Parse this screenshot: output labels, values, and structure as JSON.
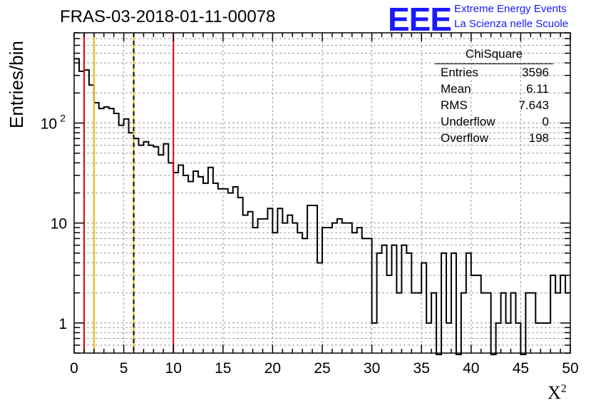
{
  "header": {
    "run_title": "FRAS-03-2018-01-11-00078",
    "logo_text": "EEE",
    "logo_line1": "Extreme Energy Events",
    "logo_line2": "La Scienza nelle Scuole",
    "logo_color": "#1a1aff"
  },
  "stats": {
    "title": "ChiSquare",
    "rows": [
      {
        "key": "Entries",
        "value": "3596"
      },
      {
        "key": "Mean",
        "value": "6.11"
      },
      {
        "key": "RMS",
        "value": "7.643"
      },
      {
        "key": "Underflow",
        "value": "0"
      },
      {
        "key": "Overflow",
        "value": "198"
      }
    ]
  },
  "chart_data": {
    "type": "histogram",
    "title": "FRAS-03-2018-01-11-00078",
    "xlabel": "X",
    "xlabel_sup": "2",
    "ylabel": "Entries/bin",
    "xlim": [
      0,
      50
    ],
    "ylim": [
      0.5,
      800
    ],
    "yscale": "log",
    "grid": true,
    "bin_width": 0.5,
    "x_ticks": [
      "0",
      "5",
      "10",
      "15",
      "20",
      "25",
      "30",
      "35",
      "40",
      "45",
      "50"
    ],
    "y_ticks": [
      {
        "value": 1,
        "label": "1"
      },
      {
        "value": 10,
        "label": "10"
      },
      {
        "value": 100,
        "label": "10",
        "exp": "2"
      }
    ],
    "counts": [
      440,
      330,
      340,
      240,
      160,
      140,
      145,
      140,
      125,
      95,
      110,
      80,
      70,
      60,
      65,
      60,
      58,
      48,
      62,
      40,
      32,
      38,
      30,
      26,
      33,
      29,
      25,
      36,
      25,
      22,
      22,
      20,
      23,
      18,
      12,
      13,
      9,
      11,
      11,
      14,
      8,
      14,
      10,
      12,
      10,
      8,
      7,
      15,
      15,
      4,
      9,
      9,
      10,
      11,
      10,
      10,
      8,
      9,
      7,
      7,
      1,
      5,
      6,
      3,
      6,
      2,
      6,
      5,
      2,
      2,
      4,
      1,
      2,
      0,
      5,
      1,
      5,
      0,
      2,
      5,
      3,
      3,
      2,
      2,
      0,
      1,
      2,
      1,
      2,
      1,
      0,
      2,
      2,
      1,
      1,
      1,
      3,
      2,
      3,
      2
    ],
    "vlines": [
      {
        "x": 1,
        "color": "#e00000",
        "style": "solid"
      },
      {
        "x": 2,
        "color": "#f0b400",
        "style": "solid"
      },
      {
        "x": 6,
        "color": "#f0b400",
        "style": "solid"
      },
      {
        "x": 6,
        "color": "#000000",
        "style": "dashed"
      },
      {
        "x": 10,
        "color": "#e00000",
        "style": "solid"
      }
    ]
  }
}
